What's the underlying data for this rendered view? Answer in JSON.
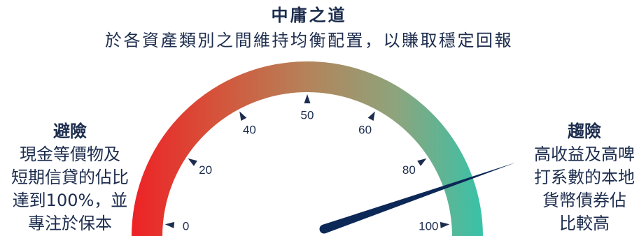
{
  "header": {
    "title": "中庸之道",
    "subtitle": "於各資產類別之間維持均衡配置，以賺取穩定回報"
  },
  "left_panel": {
    "heading": "避險",
    "lines": [
      "現金等價物及",
      "短期信貸的佔比",
      "達到100%，並",
      "專注於保本"
    ]
  },
  "right_panel": {
    "heading": "趨險",
    "lines": [
      "高收益及高啤",
      "打系數的本地",
      "貨幣債券佔",
      "比較高"
    ]
  },
  "gauge": {
    "ticks": [
      {
        "label": "0",
        "value": 0
      },
      {
        "label": "20",
        "value": 20
      },
      {
        "label": "40",
        "value": 40
      },
      {
        "label": "50",
        "value": 50
      },
      {
        "label": "60",
        "value": 60
      },
      {
        "label": "80",
        "value": 80
      },
      {
        "label": "100",
        "value": 100
      }
    ],
    "needle_value": 90,
    "gradient_colors": [
      "#ee2226",
      "#d4553b",
      "#b4835a",
      "#8ea47c",
      "#38c2a8"
    ],
    "needle_color": "#0c2857",
    "tick_color": "#1d2d4e"
  },
  "colors": {
    "text": "#1d2d4e",
    "background": "#ffffff"
  }
}
